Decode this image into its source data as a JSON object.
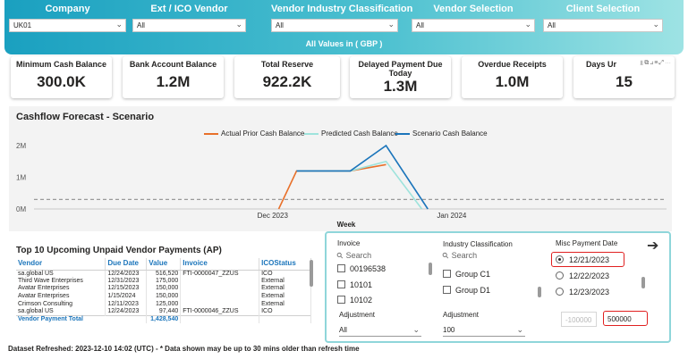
{
  "filters": [
    {
      "label": "Company",
      "value": "UK01"
    },
    {
      "label": "Ext / ICO Vendor",
      "value": "All"
    },
    {
      "label": "Vendor Industry Classification",
      "value": "All"
    },
    {
      "label": "Vendor Selection",
      "value": "All"
    },
    {
      "label": "Client Selection",
      "value": "All"
    }
  ],
  "values_note": "All Values in ( GBP )",
  "kpis": [
    {
      "label": "Minimum Cash Balance",
      "value": "300.0K"
    },
    {
      "label": "Bank Account Balance",
      "value": "1.2M"
    },
    {
      "label": "Total Reserve",
      "value": "922.2K"
    },
    {
      "label": "Delayed Payment Due Today",
      "value": "1.3M"
    },
    {
      "label": "Overdue Receipts",
      "value": "1.0M"
    },
    {
      "label": "Days Ur",
      "value": "15"
    }
  ],
  "kpi_icons": "⫫⧉⊿≡⤢⋯",
  "chart_data": {
    "type": "line",
    "title": "Cashflow Forecast - Scenario",
    "xlabel": "Week",
    "ylabel": "",
    "x_ticks": [
      "Dec 2023",
      "Jan 2024"
    ],
    "y_ticks": [
      "0M",
      "1M",
      "2M"
    ],
    "ylim": [
      0,
      2.3
    ],
    "threshold": 0.3,
    "series": [
      {
        "name": "Actual Prior Cash Balance",
        "color": "#e8702a",
        "points": [
          [
            "2023-12-12",
            0
          ],
          [
            "2023-12-15",
            1.2
          ],
          [
            "2023-12-24",
            1.2
          ],
          [
            "2023-12-30",
            1.4
          ]
        ]
      },
      {
        "name": "Predicted Cash Balance",
        "color": "#9ee3dc",
        "points": [
          [
            "2023-12-15",
            1.2
          ],
          [
            "2023-12-24",
            1.2
          ],
          [
            "2023-12-30",
            1.5
          ],
          [
            "2024-01-05",
            0
          ]
        ]
      },
      {
        "name": "Scenario Cash Balance",
        "color": "#1b75bb",
        "points": [
          [
            "2023-12-15",
            1.2
          ],
          [
            "2023-12-24",
            1.2
          ],
          [
            "2023-12-30",
            2.0
          ],
          [
            "2024-01-06",
            0
          ]
        ]
      }
    ]
  },
  "vendor": {
    "title": "Top 10 Upcoming Unpaid Vendor Payments (AP)",
    "columns": [
      "Vendor",
      "Due Date",
      "Value",
      "Invoice",
      "ICOStatus"
    ],
    "rows": [
      [
        "sa.global US",
        "12/24/2023",
        "516,520",
        "FTI-0000047_ZZUS",
        "ICO"
      ],
      [
        "Third Wave Enterprises",
        "12/31/2023",
        "175,000",
        "",
        "External"
      ],
      [
        "Avatar Enterprises",
        "12/15/2023",
        "150,000",
        "",
        "External"
      ],
      [
        "Avatar Enterprises",
        "1/15/2024",
        "150,000",
        "",
        "External"
      ],
      [
        "Crimson Consulting",
        "12/11/2023",
        "125,000",
        "",
        "External"
      ],
      [
        "sa.global US",
        "12/24/2023",
        "97,440",
        "FTI-0000046_ZZUS",
        "ICO"
      ]
    ],
    "total_label": "Vendor Payment Total",
    "total_value": "1,428,540"
  },
  "scenario": {
    "invoice": {
      "label": "Invoice",
      "search": "Search",
      "items": [
        "00196538",
        "10101",
        "10102"
      ]
    },
    "industry": {
      "label": "Industry Classification",
      "search": "Search",
      "items": [
        "Group C1",
        "Group D1"
      ]
    },
    "misc": {
      "label": "Misc Payment Date",
      "dates": [
        "12/21/2023",
        "12/22/2023",
        "12/23/2023"
      ],
      "selected": 0
    },
    "adjustment1": {
      "label": "Adjustment",
      "value": "All"
    },
    "adjustment2": {
      "label": "Adjustment",
      "value": "100"
    },
    "range_min": "-100000",
    "range_max": "500000"
  },
  "footer": "Dataset Refreshed: 2023-12-10 14:02 (UTC) - * Data shown may be up to 30 mins older than refresh time"
}
